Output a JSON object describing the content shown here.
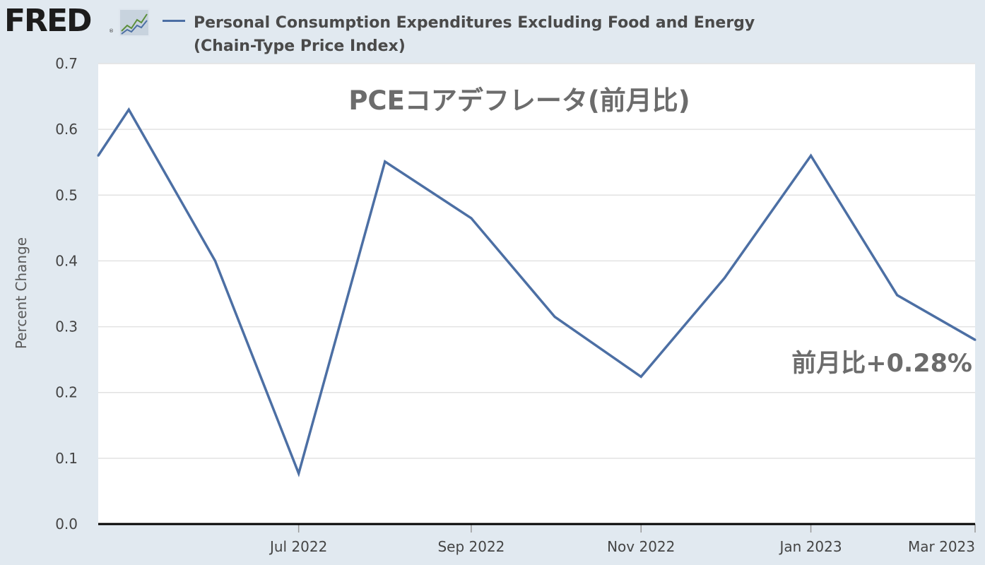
{
  "header": {
    "logo_text": "FRED",
    "reg_mark": "®",
    "logo_icon": "line-graph-icon",
    "legend_label": "Personal Consumption Expenditures Excluding Food and Energy (Chain-Type Price Index)"
  },
  "colors": {
    "background": "#e1e9f0",
    "plot_background": "#ffffff",
    "series_line": "#4c6fa4",
    "gridline": "#e2e2e2",
    "title_text": "#6c6c6c"
  },
  "chart_data": {
    "type": "line",
    "title": "PCEコアデフレータ(前月比)",
    "annotation": "前月比+0.28%",
    "ylabel": "Percent Change",
    "xlabel": "",
    "ylim": [
      0,
      0.7
    ],
    "yticks": [
      "0.0",
      "0.1",
      "0.2",
      "0.3",
      "0.4",
      "0.5",
      "0.6",
      "0.7"
    ],
    "xlim": [
      "2022-04-20",
      "2023-03-01"
    ],
    "xticks": [
      {
        "label": "Jul 2022",
        "date": "2022-07-01"
      },
      {
        "label": "Sep 2022",
        "date": "2022-09-01"
      },
      {
        "label": "Nov 2022",
        "date": "2022-11-01"
      },
      {
        "label": "Jan 2023",
        "date": "2023-01-01"
      },
      {
        "label": "Mar 2023",
        "date": "2023-03-01"
      }
    ],
    "grid": true,
    "series": [
      {
        "name": "Personal Consumption Expenditures Excluding Food and Energy (Chain-Type Price Index)",
        "points": [
          {
            "date": "2022-04-20",
            "value": 0.56
          },
          {
            "date": "2022-05-01",
            "value": 0.63
          },
          {
            "date": "2022-06-01",
            "value": 0.4
          },
          {
            "date": "2022-07-01",
            "value": 0.077
          },
          {
            "date": "2022-08-01",
            "value": 0.551
          },
          {
            "date": "2022-09-01",
            "value": 0.465
          },
          {
            "date": "2022-10-01",
            "value": 0.315
          },
          {
            "date": "2022-11-01",
            "value": 0.224
          },
          {
            "date": "2022-12-01",
            "value": 0.374
          },
          {
            "date": "2023-01-01",
            "value": 0.56
          },
          {
            "date": "2023-02-01",
            "value": 0.348
          },
          {
            "date": "2023-03-01",
            "value": 0.28
          }
        ]
      }
    ]
  }
}
